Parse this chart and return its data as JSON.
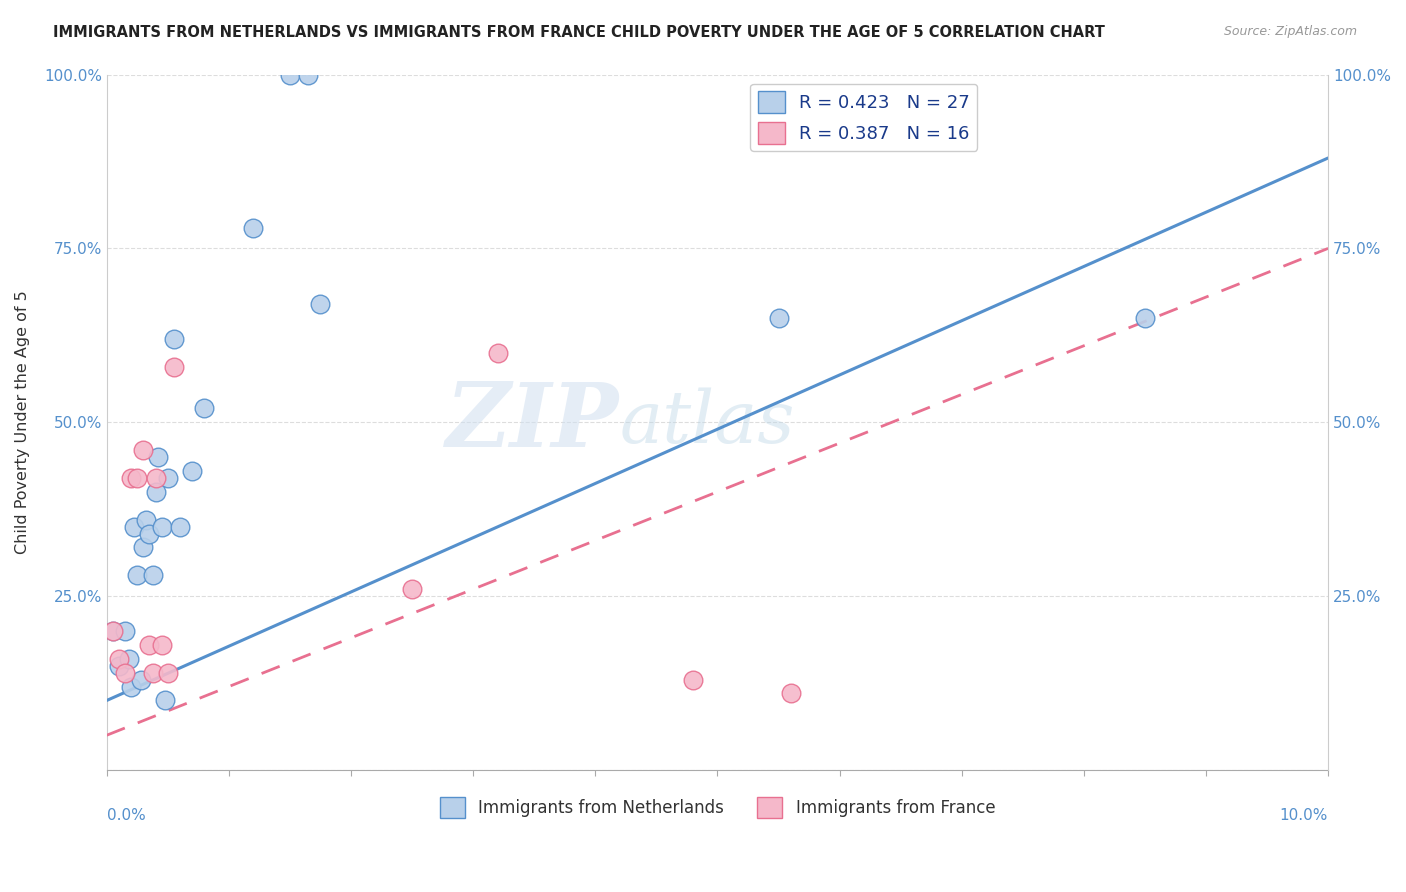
{
  "title": "IMMIGRANTS FROM NETHERLANDS VS IMMIGRANTS FROM FRANCE CHILD POVERTY UNDER THE AGE OF 5 CORRELATION CHART",
  "source": "Source: ZipAtlas.com",
  "ylabel": "Child Poverty Under the Age of 5",
  "ytick_values": [
    0,
    25,
    50,
    75,
    100
  ],
  "xmin": 0.0,
  "xmax": 10.0,
  "ymin": 0.0,
  "ymax": 100.0,
  "r_netherlands": 0.423,
  "n_netherlands": 27,
  "r_france": 0.387,
  "n_france": 16,
  "netherlands_color": "#b8d0ea",
  "france_color": "#f5b8ca",
  "netherlands_line_color": "#5590cc",
  "france_line_color": "#e87090",
  "watermark_zip": "ZIP",
  "watermark_atlas": "atlas",
  "nl_trendline_x0": 0.0,
  "nl_trendline_y0": 10.0,
  "nl_trendline_x1": 10.0,
  "nl_trendline_y1": 88.0,
  "fr_trendline_x0": 0.0,
  "fr_trendline_y0": 5.0,
  "fr_trendline_x1": 10.0,
  "fr_trendline_y1": 75.0,
  "netherlands_x": [
    0.05,
    0.1,
    0.15,
    0.18,
    0.2,
    0.22,
    0.25,
    0.28,
    0.3,
    0.32,
    0.35,
    0.38,
    0.4,
    0.42,
    0.45,
    0.48,
    0.5,
    0.55,
    0.6,
    0.7,
    0.8,
    1.2,
    1.5,
    1.65,
    1.75,
    5.5,
    8.5
  ],
  "netherlands_y": [
    20,
    15,
    20,
    16,
    12,
    35,
    28,
    13,
    32,
    36,
    34,
    28,
    40,
    45,
    35,
    10,
    42,
    62,
    35,
    43,
    52,
    78,
    100,
    100,
    67,
    65,
    65
  ],
  "france_x": [
    0.05,
    0.1,
    0.15,
    0.2,
    0.25,
    0.3,
    0.35,
    0.38,
    0.4,
    0.45,
    0.5,
    0.55,
    2.5,
    3.2,
    4.8,
    5.6
  ],
  "france_y": [
    20,
    16,
    14,
    42,
    42,
    46,
    18,
    14,
    42,
    18,
    14,
    58,
    26,
    60,
    13,
    11
  ],
  "legend_label_netherlands": "Immigrants from Netherlands",
  "legend_label_france": "Immigrants from France"
}
